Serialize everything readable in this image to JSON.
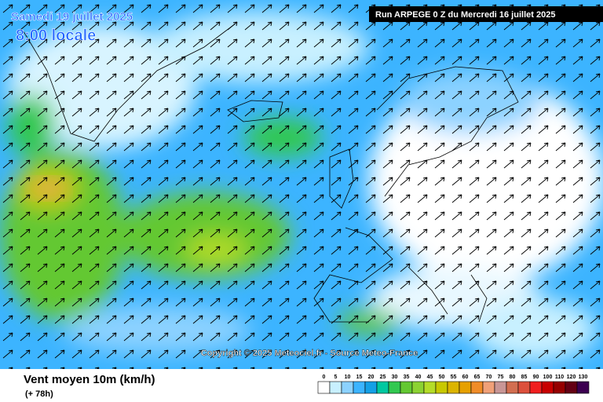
{
  "header": {
    "date": "Samedi 19 juillet 2025",
    "time": "8:00 locale",
    "run": "Run ARPEGE 0 Z du Mercredi 16 juillet 2025"
  },
  "copyright": "Copyright © 2025 Meteociel.fr - Source Meteo-France",
  "footer": {
    "title": "Vent moyen 10m (km/h)",
    "lead": "(+ 78h)"
  },
  "colorbar": [
    {
      "value": 0,
      "color": "#ffffff"
    },
    {
      "value": 5,
      "color": "#c8f0ff"
    },
    {
      "value": 10,
      "color": "#8cd2ff"
    },
    {
      "value": 15,
      "color": "#3cb4ff"
    },
    {
      "value": 20,
      "color": "#14a0e6"
    },
    {
      "value": 25,
      "color": "#00c8a0"
    },
    {
      "value": 30,
      "color": "#32c850"
    },
    {
      "value": 35,
      "color": "#64c832"
    },
    {
      "value": 40,
      "color": "#8cd232"
    },
    {
      "value": 45,
      "color": "#b4dc28"
    },
    {
      "value": 50,
      "color": "#c8c800"
    },
    {
      "value": 55,
      "color": "#dcb400"
    },
    {
      "value": 60,
      "color": "#e6a000"
    },
    {
      "value": 65,
      "color": "#f08c28"
    },
    {
      "value": 70,
      "color": "#f0a078"
    },
    {
      "value": 75,
      "color": "#c89696"
    },
    {
      "value": 80,
      "color": "#d26e50"
    },
    {
      "value": 85,
      "color": "#dc503c"
    },
    {
      "value": 90,
      "color": "#f01e1e"
    },
    {
      "value": 100,
      "color": "#c80000"
    },
    {
      "value": 110,
      "color": "#960000"
    },
    {
      "value": 120,
      "color": "#640014"
    },
    {
      "value": 130,
      "color": "#3c0050"
    }
  ]
}
